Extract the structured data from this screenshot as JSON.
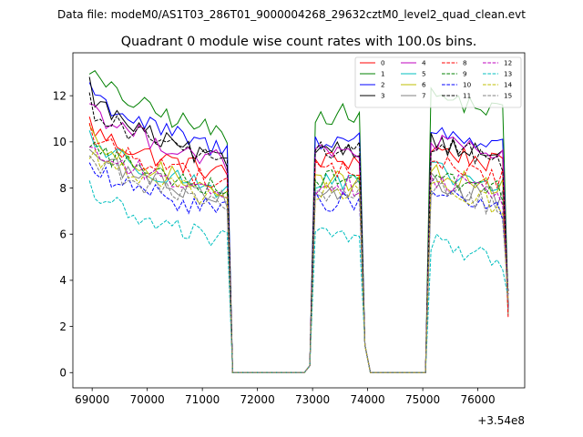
{
  "header": {
    "data_file_label": "Data file: modeM0/AS1T03_286T01_9000004268_29632cztM0_level2_quad_clean.evt"
  },
  "chart_data": {
    "type": "line",
    "title": "Quadrant 0 module wise count rates with 100.0s bins.",
    "xlabel": "",
    "ylabel": "",
    "x_offset_label": "+3.54e8",
    "xlim": [
      68650,
      76850
    ],
    "ylim": [
      -0.66,
      13.86
    ],
    "x_ticks": [
      69000,
      70000,
      71000,
      72000,
      73000,
      74000,
      75000,
      76000
    ],
    "y_ticks": [
      0,
      2,
      4,
      6,
      8,
      10,
      12
    ],
    "legend": {
      "placement": "top-right",
      "columns": 4
    },
    "bin_size_s": 100,
    "segments": [
      {
        "start": 68950,
        "end": 71550
      },
      {
        "start": 73050,
        "end": 73950
      },
      {
        "start": 75050,
        "end": 76550
      }
    ],
    "series": [
      {
        "name": "0",
        "color": "#ff0000",
        "dash": "solid",
        "levels": [
          10.9,
          8.6,
          9.2,
          9.8
        ]
      },
      {
        "name": "1",
        "color": "#008000",
        "dash": "solid",
        "levels": [
          13.3,
          10.3,
          11.2,
          12.1
        ]
      },
      {
        "name": "2",
        "color": "#0000ff",
        "dash": "solid",
        "levels": [
          12.6,
          9.6,
          10.1,
          10.6
        ]
      },
      {
        "name": "3",
        "color": "#000000",
        "dash": "solid",
        "levels": [
          12.5,
          9.0,
          9.8,
          10.1
        ]
      },
      {
        "name": "4",
        "color": "#bf00bf",
        "dash": "solid",
        "levels": [
          11.9,
          9.1,
          9.5,
          10.1
        ]
      },
      {
        "name": "5",
        "color": "#00bfbf",
        "dash": "solid",
        "levels": [
          10.4,
          7.9,
          8.2,
          8.8
        ]
      },
      {
        "name": "6",
        "color": "#bfbf00",
        "dash": "solid",
        "levels": [
          10.3,
          8.0,
          8.3,
          8.8
        ]
      },
      {
        "name": "7",
        "color": "#808080",
        "dash": "solid",
        "levels": [
          9.8,
          7.6,
          7.9,
          8.3
        ]
      },
      {
        "name": "8",
        "color": "#ff0000",
        "dash": "dashed",
        "levels": [
          10.6,
          8.3,
          8.8,
          9.2
        ]
      },
      {
        "name": "9",
        "color": "#008000",
        "dash": "dashed",
        "levels": [
          10.1,
          8.0,
          8.4,
          8.7
        ]
      },
      {
        "name": "10",
        "color": "#0000ff",
        "dash": "dashed",
        "levels": [
          9.1,
          7.0,
          7.4,
          7.9
        ]
      },
      {
        "name": "11",
        "color": "#000000",
        "dash": "dashed",
        "levels": [
          11.8,
          9.2,
          9.6,
          10.0
        ]
      },
      {
        "name": "12",
        "color": "#bf00bf",
        "dash": "dashed",
        "levels": [
          10.0,
          7.8,
          8.1,
          8.5
        ]
      },
      {
        "name": "13",
        "color": "#00bfbf",
        "dash": "dashed",
        "levels": [
          8.2,
          5.7,
          6.0,
          5.7
        ]
      },
      {
        "name": "14",
        "color": "#bfbf00",
        "dash": "dashed",
        "levels": [
          9.7,
          7.5,
          7.8,
          8.1
        ]
      },
      {
        "name": "15",
        "color": "#808080",
        "dash": "dashed",
        "levels": [
          9.5,
          7.3,
          7.7,
          8.0
        ]
      }
    ]
  }
}
